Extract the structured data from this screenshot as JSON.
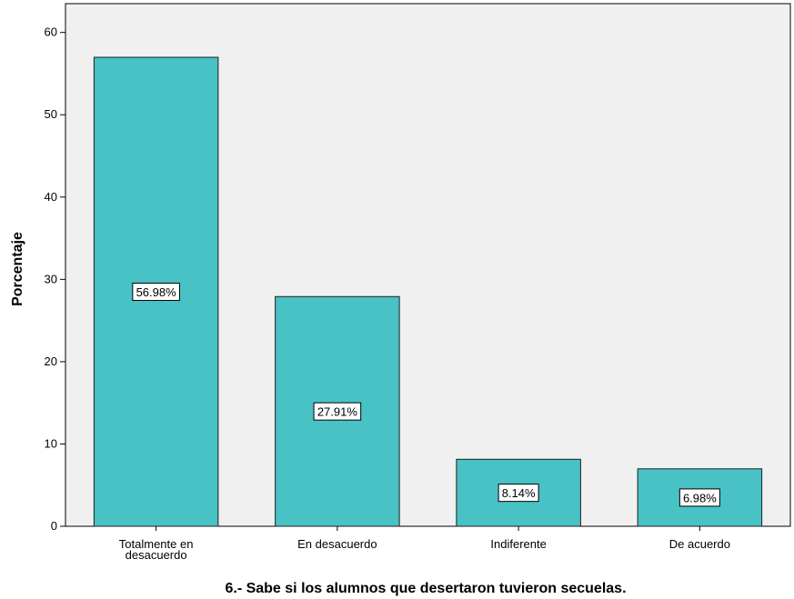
{
  "chart_data": {
    "type": "bar",
    "categories": [
      [
        "Totalmente en",
        "desacuerdo"
      ],
      [
        "En desacuerdo"
      ],
      [
        "Indiferente"
      ],
      [
        "De acuerdo"
      ]
    ],
    "values": [
      56.98,
      27.91,
      8.14,
      6.98
    ],
    "data_labels": [
      "56.98%",
      "27.91%",
      "8.14%",
      "6.98%"
    ],
    "title": "",
    "xlabel": "6.- Sabe si los alumnos que desertaron tuvieron secuelas.",
    "ylabel": "Porcentaje",
    "ylim": [
      0,
      63.5
    ],
    "yticks": [
      0,
      10,
      20,
      30,
      40,
      50,
      60
    ],
    "grid": false,
    "colors": {
      "bar": "#48C2C5",
      "bar_stroke": "#1f1f1f",
      "plot_bg": "#F0F0F0",
      "axis": "#000000"
    }
  }
}
